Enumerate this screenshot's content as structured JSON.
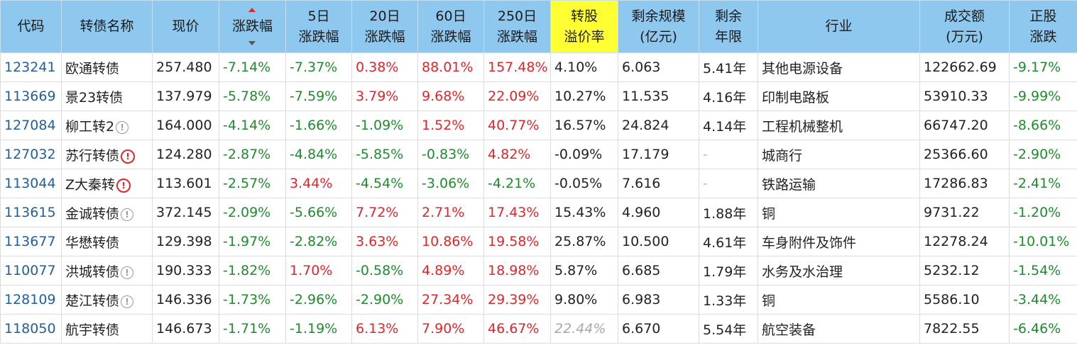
{
  "colors": {
    "header_bg": "#8fc8ee",
    "highlight_header": "#ffff33",
    "up": "#e0262a",
    "down": "#1e8c2c",
    "code": "#1f5f9a"
  },
  "table": {
    "headers": [
      {
        "line1": "代码",
        "line2": ""
      },
      {
        "line1": "转债名称",
        "line2": ""
      },
      {
        "line1": "现价",
        "line2": ""
      },
      {
        "line1": "涨跌幅",
        "line2": ""
      },
      {
        "line1": "5日",
        "line2": "涨跌幅"
      },
      {
        "line1": "20日",
        "line2": "涨跌幅"
      },
      {
        "line1": "60日",
        "line2": "涨跌幅"
      },
      {
        "line1": "250日",
        "line2": "涨跌幅"
      },
      {
        "line1": "转股",
        "line2": "溢价率"
      },
      {
        "line1": "剩余规模",
        "line2": "(亿元)"
      },
      {
        "line1": "剩余",
        "line2": "年限"
      },
      {
        "line1": "行业",
        "line2": ""
      },
      {
        "line1": "成交额",
        "line2": "(万元)"
      },
      {
        "line1": "正股",
        "line2": "涨跌"
      }
    ],
    "rows": [
      {
        "code": "123241",
        "name": "欧通转债",
        "icon": "",
        "price": "257.480",
        "chg": "-7.14%",
        "chg5": "-7.37%",
        "chg20": "0.38%",
        "chg60": "88.01%",
        "chg250": "157.48%",
        "premium": "4.10%",
        "premium_faded": false,
        "scale": "6.063",
        "years": "5.41年",
        "industry": "其他电源设备",
        "turnover": "122662.69",
        "stock_chg": "-9.17%"
      },
      {
        "code": "113669",
        "name": "景23转债",
        "icon": "",
        "price": "137.979",
        "chg": "-5.78%",
        "chg5": "-7.59%",
        "chg20": "3.79%",
        "chg60": "9.68%",
        "chg250": "22.09%",
        "premium": "10.27%",
        "premium_faded": false,
        "scale": "11.535",
        "years": "4.16年",
        "industry": "印制电路板",
        "turnover": "53910.33",
        "stock_chg": "-9.99%"
      },
      {
        "code": "127084",
        "name": "柳工转2",
        "icon": "info",
        "price": "164.000",
        "chg": "-4.14%",
        "chg5": "-1.66%",
        "chg20": "-1.09%",
        "chg60": "1.52%",
        "chg250": "40.77%",
        "premium": "16.57%",
        "premium_faded": false,
        "scale": "24.824",
        "years": "4.14年",
        "industry": "工程机械整机",
        "turnover": "66747.20",
        "stock_chg": "-8.66%"
      },
      {
        "code": "127032",
        "name": "苏行转债",
        "icon": "warn",
        "price": "124.280",
        "chg": "-2.87%",
        "chg5": "-4.84%",
        "chg20": "-5.85%",
        "chg60": "-0.83%",
        "chg250": "4.82%",
        "premium": "-0.09%",
        "premium_faded": false,
        "scale": "17.179",
        "years": "-",
        "industry": "城商行",
        "turnover": "25366.60",
        "stock_chg": "-2.90%"
      },
      {
        "code": "113044",
        "name": "Z大秦转",
        "icon": "warn",
        "price": "113.601",
        "chg": "-2.57%",
        "chg5": "3.44%",
        "chg20": "-4.54%",
        "chg60": "-3.06%",
        "chg250": "-4.21%",
        "premium": "-0.05%",
        "premium_faded": false,
        "scale": "7.616",
        "years": "-",
        "industry": "铁路运输",
        "turnover": "17286.83",
        "stock_chg": "-2.41%"
      },
      {
        "code": "113615",
        "name": "金诚转债",
        "icon": "info",
        "price": "372.145",
        "chg": "-2.09%",
        "chg5": "-5.66%",
        "chg20": "7.72%",
        "chg60": "2.71%",
        "chg250": "17.43%",
        "premium": "15.43%",
        "premium_faded": false,
        "scale": "4.960",
        "years": "1.88年",
        "industry": "铜",
        "turnover": "9731.22",
        "stock_chg": "-1.20%"
      },
      {
        "code": "113677",
        "name": "华懋转债",
        "icon": "",
        "price": "129.398",
        "chg": "-1.97%",
        "chg5": "-2.82%",
        "chg20": "3.63%",
        "chg60": "10.86%",
        "chg250": "19.58%",
        "premium": "25.87%",
        "premium_faded": false,
        "scale": "10.500",
        "years": "4.61年",
        "industry": "车身附件及饰件",
        "turnover": "12278.24",
        "stock_chg": "-10.01%"
      },
      {
        "code": "110077",
        "name": "洪城转债",
        "icon": "info",
        "price": "190.333",
        "chg": "-1.82%",
        "chg5": "1.70%",
        "chg20": "-0.58%",
        "chg60": "4.89%",
        "chg250": "18.98%",
        "premium": "5.87%",
        "premium_faded": false,
        "scale": "6.685",
        "years": "1.79年",
        "industry": "水务及水治理",
        "turnover": "5232.12",
        "stock_chg": "-1.54%"
      },
      {
        "code": "128109",
        "name": "楚江转债",
        "icon": "info",
        "price": "146.336",
        "chg": "-1.73%",
        "chg5": "-2.96%",
        "chg20": "-2.90%",
        "chg60": "27.34%",
        "chg250": "29.39%",
        "premium": "9.80%",
        "premium_faded": false,
        "scale": "6.983",
        "years": "1.33年",
        "industry": "铜",
        "turnover": "5586.10",
        "stock_chg": "-3.44%"
      },
      {
        "code": "118050",
        "name": "航宇转债",
        "icon": "",
        "price": "146.673",
        "chg": "-1.71%",
        "chg5": "-1.19%",
        "chg20": "6.13%",
        "chg60": "7.90%",
        "chg250": "46.67%",
        "premium": "22.44%",
        "premium_faded": true,
        "scale": "6.670",
        "years": "5.54年",
        "industry": "航空装备",
        "turnover": "7822.55",
        "stock_chg": "-6.46%"
      }
    ]
  }
}
